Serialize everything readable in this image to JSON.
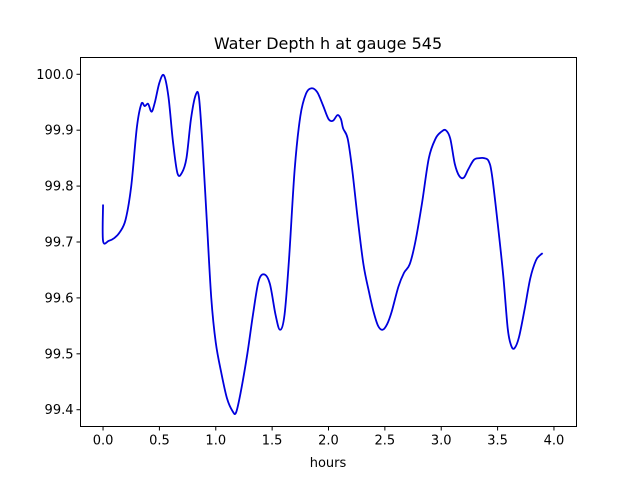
{
  "chart_data": {
    "type": "line",
    "title": "Water Depth h at gauge 545",
    "xlabel": "hours",
    "ylabel": "",
    "xlim": [
      -0.2,
      4.2
    ],
    "ylim": [
      99.37,
      100.03
    ],
    "xticks": [
      {
        "value": 0.0,
        "label": "0.0"
      },
      {
        "value": 0.5,
        "label": "0.5"
      },
      {
        "value": 1.0,
        "label": "1.0"
      },
      {
        "value": 1.5,
        "label": "1.5"
      },
      {
        "value": 2.0,
        "label": "2.0"
      },
      {
        "value": 2.5,
        "label": "2.5"
      },
      {
        "value": 3.0,
        "label": "3.0"
      },
      {
        "value": 3.5,
        "label": "3.5"
      },
      {
        "value": 4.0,
        "label": "4.0"
      }
    ],
    "yticks": [
      {
        "value": 99.4,
        "label": "99.4"
      },
      {
        "value": 99.5,
        "label": "99.5"
      },
      {
        "value": 99.6,
        "label": "99.6"
      },
      {
        "value": 99.7,
        "label": "99.7"
      },
      {
        "value": 99.8,
        "label": "99.8"
      },
      {
        "value": 99.9,
        "label": "99.9"
      },
      {
        "value": 100.0,
        "label": "100.0"
      }
    ],
    "grid": false,
    "series": [
      {
        "color": "#0000dd",
        "points": [
          [
            0.0,
            99.767
          ],
          [
            0.0,
            99.702
          ],
          [
            0.05,
            99.702
          ],
          [
            0.1,
            99.707
          ],
          [
            0.15,
            99.718
          ],
          [
            0.2,
            99.74
          ],
          [
            0.25,
            99.8
          ],
          [
            0.3,
            99.905
          ],
          [
            0.34,
            99.947
          ],
          [
            0.37,
            99.943
          ],
          [
            0.4,
            99.947
          ],
          [
            0.43,
            99.933
          ],
          [
            0.46,
            99.95
          ],
          [
            0.5,
            99.985
          ],
          [
            0.54,
            99.998
          ],
          [
            0.58,
            99.96
          ],
          [
            0.62,
            99.88
          ],
          [
            0.66,
            99.823
          ],
          [
            0.7,
            99.824
          ],
          [
            0.74,
            99.85
          ],
          [
            0.78,
            99.92
          ],
          [
            0.82,
            99.962
          ],
          [
            0.85,
            99.96
          ],
          [
            0.88,
            99.88
          ],
          [
            0.92,
            99.74
          ],
          [
            0.96,
            99.6
          ],
          [
            1.0,
            99.52
          ],
          [
            1.05,
            99.465
          ],
          [
            1.1,
            99.42
          ],
          [
            1.15,
            99.397
          ],
          [
            1.18,
            99.395
          ],
          [
            1.22,
            99.43
          ],
          [
            1.28,
            99.5
          ],
          [
            1.33,
            99.57
          ],
          [
            1.38,
            99.63
          ],
          [
            1.43,
            99.642
          ],
          [
            1.48,
            99.625
          ],
          [
            1.53,
            99.57
          ],
          [
            1.57,
            99.543
          ],
          [
            1.61,
            99.57
          ],
          [
            1.65,
            99.67
          ],
          [
            1.7,
            99.83
          ],
          [
            1.75,
            99.925
          ],
          [
            1.8,
            99.965
          ],
          [
            1.85,
            99.975
          ],
          [
            1.9,
            99.968
          ],
          [
            1.95,
            99.945
          ],
          [
            2.0,
            99.92
          ],
          [
            2.04,
            99.917
          ],
          [
            2.08,
            99.927
          ],
          [
            2.11,
            99.92
          ],
          [
            2.13,
            99.903
          ],
          [
            2.17,
            99.885
          ],
          [
            2.21,
            99.83
          ],
          [
            2.26,
            99.74
          ],
          [
            2.31,
            99.66
          ],
          [
            2.36,
            99.61
          ],
          [
            2.4,
            99.575
          ],
          [
            2.44,
            99.55
          ],
          [
            2.48,
            99.543
          ],
          [
            2.52,
            99.553
          ],
          [
            2.56,
            99.575
          ],
          [
            2.62,
            99.62
          ],
          [
            2.67,
            99.645
          ],
          [
            2.72,
            99.66
          ],
          [
            2.77,
            99.7
          ],
          [
            2.83,
            99.77
          ],
          [
            2.89,
            99.85
          ],
          [
            2.95,
            99.885
          ],
          [
            3.0,
            99.897
          ],
          [
            3.04,
            99.9
          ],
          [
            3.08,
            99.885
          ],
          [
            3.12,
            99.84
          ],
          [
            3.16,
            99.818
          ],
          [
            3.2,
            99.815
          ],
          [
            3.24,
            99.83
          ],
          [
            3.29,
            99.847
          ],
          [
            3.34,
            99.85
          ],
          [
            3.38,
            99.85
          ],
          [
            3.42,
            99.845
          ],
          [
            3.45,
            99.82
          ],
          [
            3.5,
            99.735
          ],
          [
            3.55,
            99.64
          ],
          [
            3.59,
            99.545
          ],
          [
            3.62,
            99.515
          ],
          [
            3.65,
            99.51
          ],
          [
            3.69,
            99.53
          ],
          [
            3.74,
            99.58
          ],
          [
            3.79,
            99.635
          ],
          [
            3.84,
            99.667
          ],
          [
            3.88,
            99.677
          ],
          [
            3.9,
            99.68
          ]
        ]
      }
    ]
  }
}
